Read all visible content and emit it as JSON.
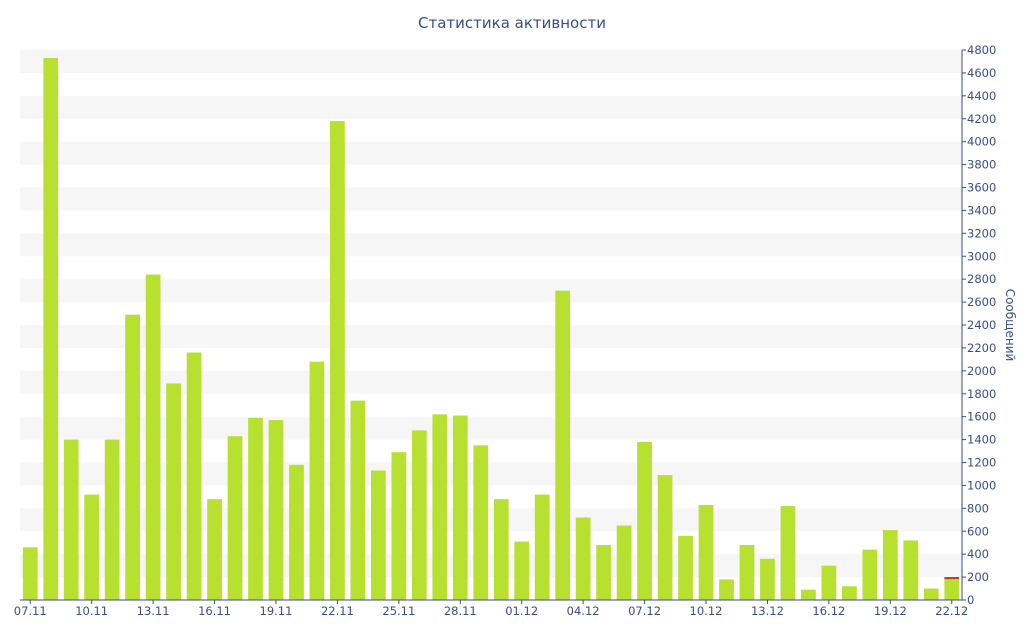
{
  "chart_data": {
    "type": "bar",
    "title": "Статистика активности",
    "xlabel": "",
    "ylabel": "Сообщений",
    "ylim": [
      0,
      4800
    ],
    "y_ticks": [
      0,
      200,
      400,
      600,
      800,
      1000,
      1200,
      1400,
      1600,
      1800,
      2000,
      2200,
      2400,
      2600,
      2800,
      3000,
      3200,
      3400,
      3600,
      3800,
      4000,
      4200,
      4400,
      4600,
      4800
    ],
    "y_axis_position": "right",
    "grid": "horizontal-bands",
    "categories": [
      "07.11",
      "08.11",
      "09.11",
      "10.11",
      "11.11",
      "12.11",
      "13.11",
      "14.11",
      "15.11",
      "16.11",
      "17.11",
      "18.11",
      "19.11",
      "20.11",
      "21.11",
      "22.11",
      "23.11",
      "24.11",
      "25.11",
      "26.11",
      "27.11",
      "28.11",
      "29.11",
      "30.11",
      "01.12",
      "02.12",
      "03.12",
      "04.12",
      "05.12",
      "06.12",
      "07.12",
      "08.12",
      "09.12",
      "10.12",
      "11.12",
      "12.12",
      "13.12",
      "14.12",
      "15.12",
      "16.12",
      "17.12",
      "18.12",
      "19.12",
      "20.12",
      "21.12",
      "22.12"
    ],
    "x_tick_labels": [
      "07.11",
      "10.11",
      "13.11",
      "16.11",
      "19.11",
      "22.11",
      "25.11",
      "28.11",
      "01.12",
      "04.12",
      "07.12",
      "10.12",
      "13.12",
      "16.12",
      "19.12",
      "22.12"
    ],
    "values": [
      460,
      4730,
      1400,
      920,
      1400,
      2490,
      2840,
      1890,
      2160,
      880,
      1430,
      1590,
      1570,
      1180,
      2080,
      4180,
      1740,
      1130,
      1290,
      1480,
      1620,
      1610,
      1350,
      880,
      510,
      920,
      2700,
      720,
      480,
      650,
      1380,
      1090,
      560,
      830,
      180,
      480,
      360,
      820,
      90,
      300,
      120,
      440,
      610,
      520,
      100,
      200
    ],
    "colors": {
      "bar": "#b8e030",
      "last_bar_top": "#c0392b",
      "band": "#f6f6f6",
      "axis": "#3a4d8a"
    }
  }
}
